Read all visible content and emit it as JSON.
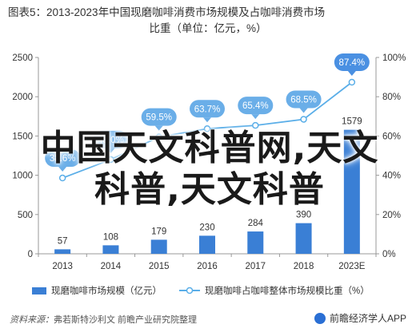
{
  "title": {
    "line1": "图表5：2013-2023年中国现磨咖啡消费市场规模及占咖啡消费市场",
    "line2": "比重（单位：亿元，%）"
  },
  "overlay_text": {
    "line1": "中国天文科普网,天文",
    "line2": "科普,天文科普"
  },
  "legend": {
    "bar_label": "现磨咖啡市场规模（亿元）",
    "line_label": "现磨咖啡占咖啡整体市场规模比重（%）"
  },
  "footer": {
    "source_label": "资料来源：",
    "source_text": "弗若斯特沙利文 前瞻产业研究院整理",
    "brand": "前瞻经济学人APP"
  },
  "colors": {
    "bar": "#3a7fd5",
    "line": "#5aaee8",
    "label_bubble": "#6aaee8",
    "last_label_bubble": "#4a90e2"
  },
  "chart_data": {
    "type": "bar",
    "categories": [
      "2013",
      "2014",
      "2015",
      "2016",
      "2017",
      "2018",
      "2023E"
    ],
    "series": [
      {
        "name": "现磨咖啡市场规模（亿元）",
        "type": "bar",
        "axis": "left",
        "values": [
          57,
          108,
          179,
          230,
          284,
          390,
          1579
        ]
      },
      {
        "name": "现磨咖啡占咖啡整体市场规模比重（%）",
        "type": "line",
        "axis": "right",
        "values": [
          38.6,
          48.0,
          59.5,
          63.7,
          65.4,
          68.5,
          87.4
        ],
        "labels": [
          "38.6%",
          "48.0%",
          "59.5%",
          "63.7%",
          "65.4%",
          "68.5%",
          "87.4%"
        ]
      }
    ],
    "ylim_left": [
      0,
      2500
    ],
    "yticks_left": [
      "0",
      "500",
      "1000",
      "1500",
      "2000",
      "2500"
    ],
    "ylim_right": [
      0,
      100
    ],
    "yticks_right": [
      "0%",
      "20%",
      "40%",
      "60%",
      "80%",
      "100%"
    ],
    "grid": false,
    "legend_position": "bottom"
  }
}
